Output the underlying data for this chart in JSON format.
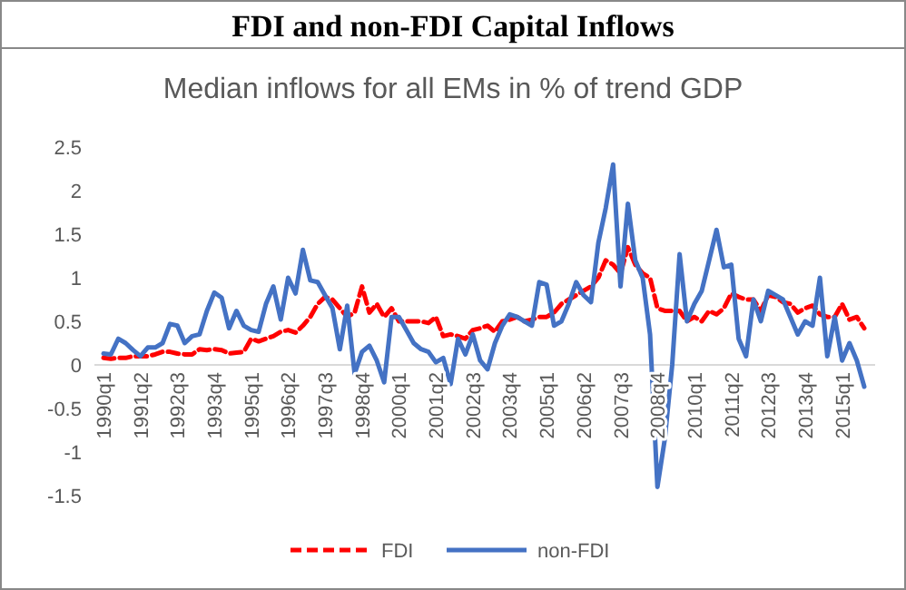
{
  "chart_data": {
    "type": "line",
    "title": "FDI and non-FDI Capital Inflows",
    "subtitle": "Median inflows for all EMs in % of trend GDP",
    "categories": [
      "1990q1",
      null,
      null,
      null,
      null,
      "1991q2",
      null,
      null,
      null,
      null,
      "1992q3",
      null,
      null,
      null,
      null,
      "1993q4",
      null,
      null,
      null,
      null,
      "1995q1",
      null,
      null,
      null,
      null,
      "1996q2",
      null,
      null,
      null,
      null,
      "1997q3",
      null,
      null,
      null,
      null,
      "1998q4",
      null,
      null,
      null,
      null,
      "2000q1",
      null,
      null,
      null,
      null,
      "2001q2",
      null,
      null,
      null,
      null,
      "2002q3",
      null,
      null,
      null,
      null,
      "2003q4",
      null,
      null,
      null,
      null,
      "2005q1",
      null,
      null,
      null,
      null,
      "2006q2",
      null,
      null,
      null,
      null,
      "2007q3",
      null,
      null,
      null,
      null,
      "2008q4",
      null,
      null,
      null,
      null,
      "2010q1",
      null,
      null,
      null,
      null,
      "2011q2",
      null,
      null,
      null,
      null,
      "2012q3",
      null,
      null,
      null,
      null,
      "2013q4",
      null,
      null,
      null,
      null,
      "2015q1",
      null,
      null,
      null
    ],
    "series": [
      {
        "name": "FDI",
        "color": "#ff0000",
        "line_style": "dashed",
        "values": [
          0.08,
          0.07,
          0.08,
          0.08,
          0.1,
          0.1,
          0.1,
          0.12,
          0.15,
          0.15,
          0.13,
          0.12,
          0.12,
          0.18,
          0.17,
          0.18,
          0.17,
          0.13,
          0.14,
          0.15,
          0.3,
          0.27,
          0.3,
          0.33,
          0.38,
          0.4,
          0.37,
          0.45,
          0.55,
          0.7,
          0.78,
          0.75,
          0.65,
          0.55,
          0.6,
          0.9,
          0.6,
          0.7,
          0.55,
          0.65,
          0.5,
          0.5,
          0.5,
          0.5,
          0.48,
          0.55,
          0.33,
          0.35,
          0.33,
          0.3,
          0.4,
          0.42,
          0.45,
          0.38,
          0.5,
          0.52,
          0.55,
          0.5,
          0.52,
          0.55,
          0.55,
          0.6,
          0.7,
          0.75,
          0.8,
          0.85,
          0.9,
          1.0,
          1.2,
          1.15,
          1.05,
          1.35,
          1.15,
          1.05,
          1.0,
          0.65,
          0.62,
          0.62,
          0.62,
          0.5,
          0.55,
          0.5,
          0.62,
          0.58,
          0.65,
          0.82,
          0.78,
          0.75,
          0.75,
          0.62,
          0.8,
          0.78,
          0.72,
          0.7,
          0.6,
          0.65,
          0.68,
          0.58,
          0.55,
          0.55,
          0.7,
          0.52,
          0.55,
          0.42
        ]
      },
      {
        "name": "non-FDI",
        "color": "#4472c4",
        "line_style": "solid",
        "values": [
          0.13,
          0.12,
          0.3,
          0.25,
          0.17,
          0.1,
          0.2,
          0.2,
          0.25,
          0.47,
          0.45,
          0.25,
          0.33,
          0.35,
          0.62,
          0.83,
          0.77,
          0.42,
          0.62,
          0.45,
          0.4,
          0.38,
          0.7,
          0.9,
          0.52,
          1.0,
          0.82,
          1.32,
          0.97,
          0.95,
          0.8,
          0.65,
          0.18,
          0.68,
          -0.1,
          0.15,
          0.22,
          0.05,
          -0.2,
          0.55,
          0.55,
          0.4,
          0.25,
          0.18,
          0.15,
          0.03,
          0.08,
          -0.22,
          0.3,
          0.12,
          0.35,
          0.05,
          -0.05,
          0.25,
          0.45,
          0.58,
          0.55,
          0.5,
          0.45,
          0.95,
          0.92,
          0.45,
          0.5,
          0.7,
          0.95,
          0.8,
          0.72,
          1.4,
          1.8,
          2.3,
          0.9,
          1.85,
          1.2,
          1.0,
          0.35,
          -1.4,
          -0.85,
          0.0,
          1.27,
          0.5,
          0.7,
          0.85,
          1.2,
          1.55,
          1.12,
          1.15,
          0.3,
          0.1,
          0.75,
          0.5,
          0.85,
          0.8,
          0.75,
          0.55,
          0.35,
          0.5,
          0.45,
          1.0,
          0.1,
          0.55,
          0.05,
          0.25,
          0.05,
          -0.25
        ]
      }
    ],
    "ylim": [
      -1.5,
      2.5
    ],
    "yticks": [
      -1.5,
      -1,
      -0.5,
      0,
      0.5,
      1,
      1.5,
      2,
      2.5
    ],
    "legend": "bottom"
  }
}
